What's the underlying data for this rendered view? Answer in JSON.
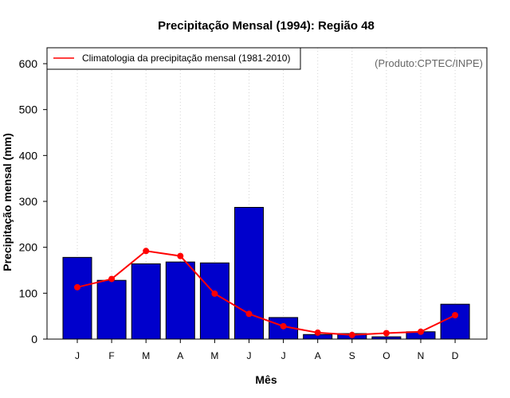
{
  "chart_data": {
    "type": "bar",
    "title": "Precipitação Mensal (1994): Região 48",
    "xlabel": "Mês",
    "ylabel": "Precipitação mensal (mm)",
    "ylim": [
      0,
      630
    ],
    "yticks": [
      0,
      100,
      200,
      300,
      400,
      500,
      600
    ],
    "categories": [
      "J",
      "F",
      "M",
      "A",
      "M",
      "J",
      "J",
      "A",
      "S",
      "O",
      "N",
      "D"
    ],
    "series": [
      {
        "name": "Precipitação mensal (1994)",
        "type": "bar",
        "color": "#0000CC",
        "values": [
          178,
          128,
          164,
          168,
          166,
          287,
          47,
          10,
          12,
          5,
          16,
          76
        ]
      },
      {
        "name": "Climatologia da precipitação mensal (1981-2010)",
        "type": "line",
        "color": "#FF0000",
        "values": [
          113,
          131,
          192,
          181,
          99,
          55,
          28,
          14,
          9,
          13,
          16,
          52
        ]
      }
    ],
    "legend": {
      "position": "top-left",
      "entries": [
        "Climatologia da precipitação mensal (1981-2010)"
      ]
    },
    "annotation": "(Produto:CPTEC/INPE)",
    "grid": "vertical-dotted"
  }
}
